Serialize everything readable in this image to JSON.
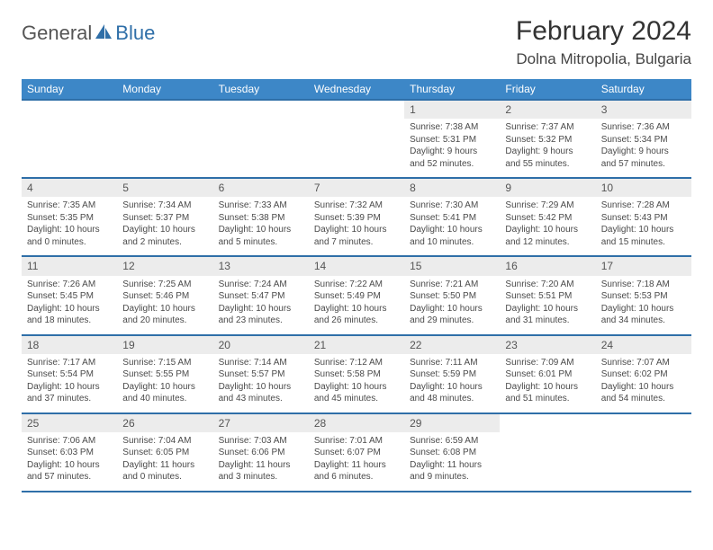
{
  "brand": {
    "general": "General",
    "blue": "Blue"
  },
  "colors": {
    "header_bg": "#3d87c7",
    "header_border": "#2f6fa8",
    "daynum_bg": "#ececec",
    "text": "#4a4a4a"
  },
  "title": "February 2024",
  "location": "Dolna Mitropolia, Bulgaria",
  "weekdays": [
    "Sunday",
    "Monday",
    "Tuesday",
    "Wednesday",
    "Thursday",
    "Friday",
    "Saturday"
  ],
  "weeks": [
    [
      null,
      null,
      null,
      null,
      {
        "n": "1",
        "sr": "7:38 AM",
        "ss": "5:31 PM",
        "dl": "9 hours and 52 minutes."
      },
      {
        "n": "2",
        "sr": "7:37 AM",
        "ss": "5:32 PM",
        "dl": "9 hours and 55 minutes."
      },
      {
        "n": "3",
        "sr": "7:36 AM",
        "ss": "5:34 PM",
        "dl": "9 hours and 57 minutes."
      }
    ],
    [
      {
        "n": "4",
        "sr": "7:35 AM",
        "ss": "5:35 PM",
        "dl": "10 hours and 0 minutes."
      },
      {
        "n": "5",
        "sr": "7:34 AM",
        "ss": "5:37 PM",
        "dl": "10 hours and 2 minutes."
      },
      {
        "n": "6",
        "sr": "7:33 AM",
        "ss": "5:38 PM",
        "dl": "10 hours and 5 minutes."
      },
      {
        "n": "7",
        "sr": "7:32 AM",
        "ss": "5:39 PM",
        "dl": "10 hours and 7 minutes."
      },
      {
        "n": "8",
        "sr": "7:30 AM",
        "ss": "5:41 PM",
        "dl": "10 hours and 10 minutes."
      },
      {
        "n": "9",
        "sr": "7:29 AM",
        "ss": "5:42 PM",
        "dl": "10 hours and 12 minutes."
      },
      {
        "n": "10",
        "sr": "7:28 AM",
        "ss": "5:43 PM",
        "dl": "10 hours and 15 minutes."
      }
    ],
    [
      {
        "n": "11",
        "sr": "7:26 AM",
        "ss": "5:45 PM",
        "dl": "10 hours and 18 minutes."
      },
      {
        "n": "12",
        "sr": "7:25 AM",
        "ss": "5:46 PM",
        "dl": "10 hours and 20 minutes."
      },
      {
        "n": "13",
        "sr": "7:24 AM",
        "ss": "5:47 PM",
        "dl": "10 hours and 23 minutes."
      },
      {
        "n": "14",
        "sr": "7:22 AM",
        "ss": "5:49 PM",
        "dl": "10 hours and 26 minutes."
      },
      {
        "n": "15",
        "sr": "7:21 AM",
        "ss": "5:50 PM",
        "dl": "10 hours and 29 minutes."
      },
      {
        "n": "16",
        "sr": "7:20 AM",
        "ss": "5:51 PM",
        "dl": "10 hours and 31 minutes."
      },
      {
        "n": "17",
        "sr": "7:18 AM",
        "ss": "5:53 PM",
        "dl": "10 hours and 34 minutes."
      }
    ],
    [
      {
        "n": "18",
        "sr": "7:17 AM",
        "ss": "5:54 PM",
        "dl": "10 hours and 37 minutes."
      },
      {
        "n": "19",
        "sr": "7:15 AM",
        "ss": "5:55 PM",
        "dl": "10 hours and 40 minutes."
      },
      {
        "n": "20",
        "sr": "7:14 AM",
        "ss": "5:57 PM",
        "dl": "10 hours and 43 minutes."
      },
      {
        "n": "21",
        "sr": "7:12 AM",
        "ss": "5:58 PM",
        "dl": "10 hours and 45 minutes."
      },
      {
        "n": "22",
        "sr": "7:11 AM",
        "ss": "5:59 PM",
        "dl": "10 hours and 48 minutes."
      },
      {
        "n": "23",
        "sr": "7:09 AM",
        "ss": "6:01 PM",
        "dl": "10 hours and 51 minutes."
      },
      {
        "n": "24",
        "sr": "7:07 AM",
        "ss": "6:02 PM",
        "dl": "10 hours and 54 minutes."
      }
    ],
    [
      {
        "n": "25",
        "sr": "7:06 AM",
        "ss": "6:03 PM",
        "dl": "10 hours and 57 minutes."
      },
      {
        "n": "26",
        "sr": "7:04 AM",
        "ss": "6:05 PM",
        "dl": "11 hours and 0 minutes."
      },
      {
        "n": "27",
        "sr": "7:03 AM",
        "ss": "6:06 PM",
        "dl": "11 hours and 3 minutes."
      },
      {
        "n": "28",
        "sr": "7:01 AM",
        "ss": "6:07 PM",
        "dl": "11 hours and 6 minutes."
      },
      {
        "n": "29",
        "sr": "6:59 AM",
        "ss": "6:08 PM",
        "dl": "11 hours and 9 minutes."
      },
      null,
      null
    ]
  ],
  "labels": {
    "sunrise": "Sunrise: ",
    "sunset": "Sunset: ",
    "daylight": "Daylight: "
  }
}
